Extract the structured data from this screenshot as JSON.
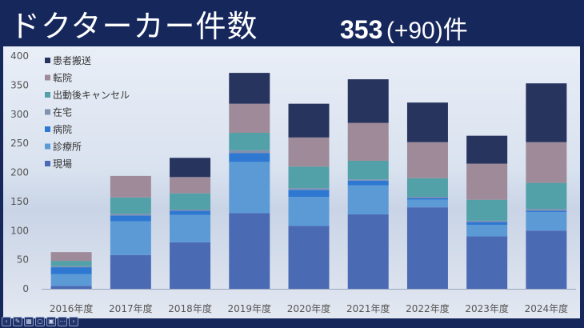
{
  "title": {
    "main": "ドクターカー件数",
    "count": "353",
    "diff": "(+90)",
    "unit": "件"
  },
  "chart_data": {
    "type": "bar",
    "stacked": true,
    "title": "ドクターカー件数",
    "categories": [
      "2016年度",
      "2017年度",
      "2018年度",
      "2019年度",
      "2020年度",
      "2021年度",
      "2022年度",
      "2023年度",
      "2024年度"
    ],
    "ylim": [
      0,
      400
    ],
    "yticks": [
      0,
      50,
      100,
      150,
      200,
      250,
      300,
      350,
      400
    ],
    "legend_position": "top-left",
    "series": [
      {
        "name": "現場",
        "color": "#4a6ab4",
        "values": [
          5,
          58,
          80,
          130,
          108,
          128,
          140,
          90,
          100
        ]
      },
      {
        "name": "診療所",
        "color": "#5c9ad6",
        "values": [
          20,
          58,
          47,
          88,
          50,
          50,
          13,
          20,
          32
        ]
      },
      {
        "name": "病院",
        "color": "#2e78d2",
        "values": [
          12,
          10,
          7,
          15,
          12,
          8,
          3,
          5,
          2
        ]
      },
      {
        "name": "在宅",
        "color": "#8290b0",
        "values": [
          2,
          3,
          2,
          5,
          3,
          2,
          2,
          2,
          3
        ]
      },
      {
        "name": "出動後キャンセル",
        "color": "#52a0a8",
        "values": [
          9,
          28,
          28,
          30,
          37,
          32,
          32,
          36,
          45
        ]
      },
      {
        "name": "転院",
        "color": "#9e8a98",
        "values": [
          15,
          37,
          28,
          50,
          50,
          65,
          62,
          62,
          70
        ]
      },
      {
        "name": "患者搬送",
        "color": "#27345e",
        "values": [
          0,
          0,
          33,
          53,
          58,
          75,
          68,
          48,
          101
        ]
      }
    ]
  }
}
